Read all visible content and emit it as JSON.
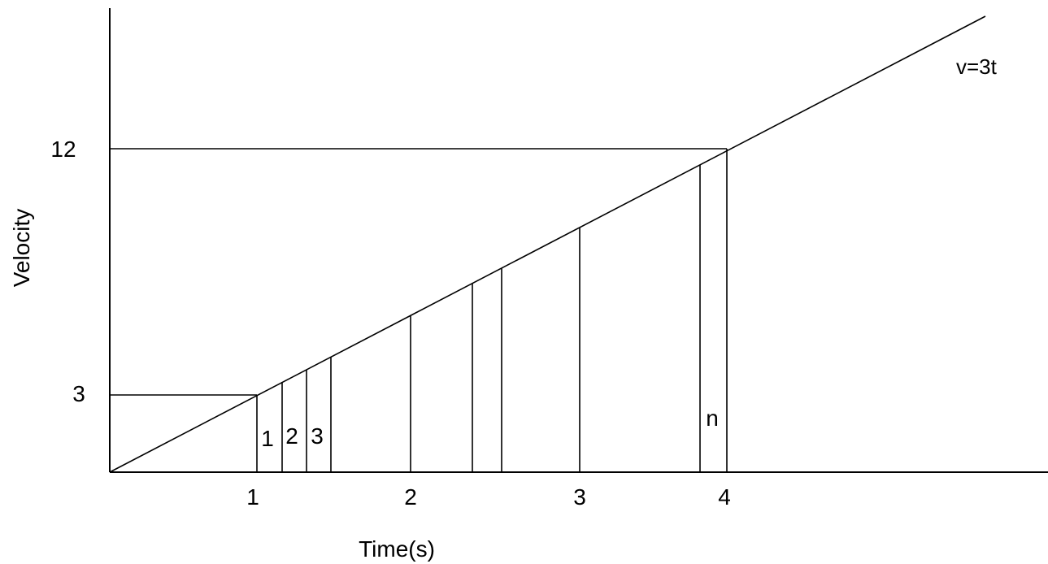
{
  "diagram": {
    "equation_label": "v=3t",
    "x_axis_title": "Time(s)",
    "y_axis_title": "Velocity",
    "x_ticks": [
      "1",
      "2",
      "3",
      "4"
    ],
    "y_ticks": [
      "3",
      "12"
    ],
    "strip_labels": [
      "1",
      "2",
      "3",
      "n"
    ]
  },
  "chart_data": {
    "type": "line",
    "title": "",
    "xlabel": "Time(s)",
    "ylabel": "Velocity",
    "series": [
      {
        "name": "v=3t",
        "x": [
          0,
          4
        ],
        "y": [
          0,
          12
        ]
      }
    ],
    "x_ticks": [
      1,
      2,
      3,
      4
    ],
    "y_ticks": [
      3,
      12
    ],
    "grid": false
  },
  "colors": {
    "stroke": "#000000",
    "background": "#ffffff"
  }
}
